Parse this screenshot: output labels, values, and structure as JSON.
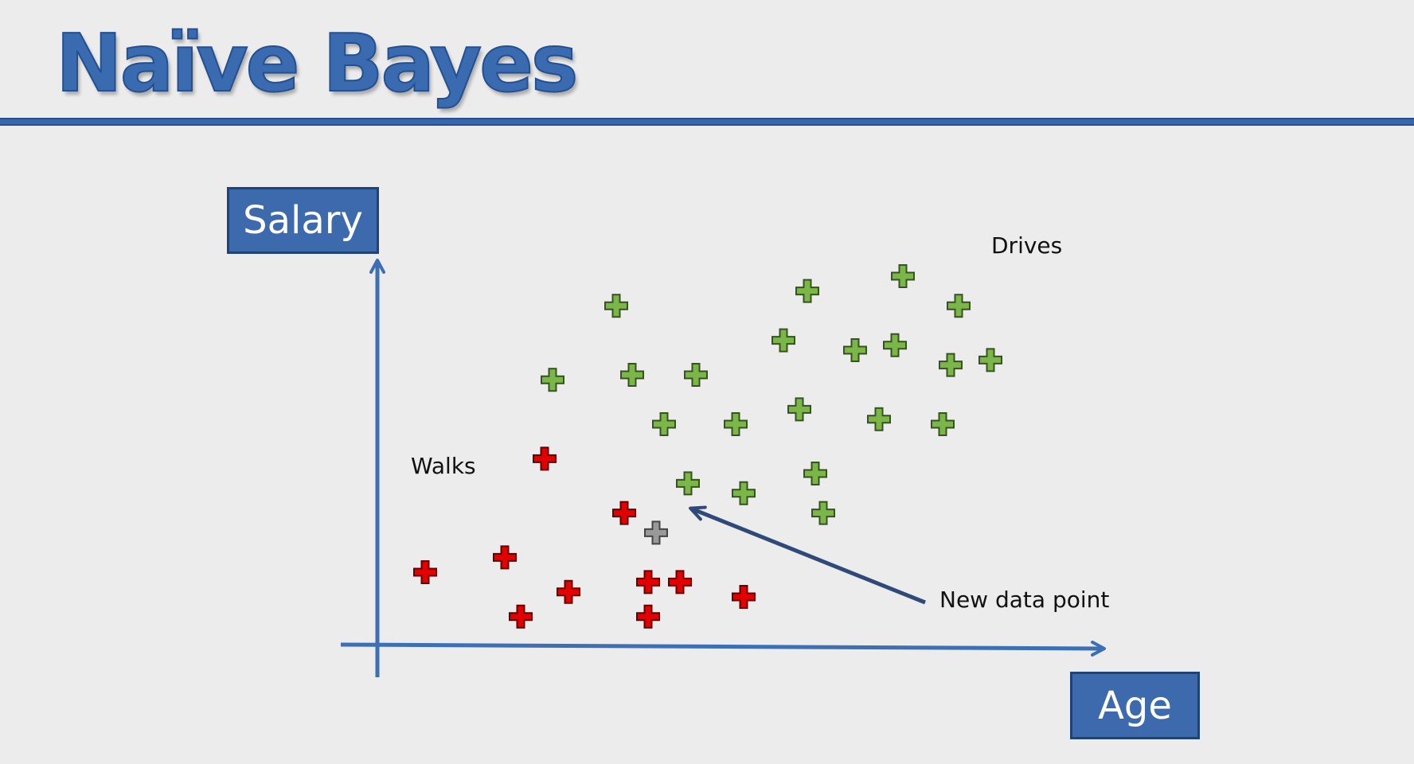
{
  "slide": {
    "title": "Naïve Bayes"
  },
  "chart_data": {
    "type": "scatter",
    "xlabel": "Age",
    "ylabel": "Salary",
    "grid": false,
    "series": [
      {
        "name": "Walks",
        "color": "#e30000",
        "points": [
          [
            0.6,
            1.5
          ],
          [
            1.6,
            1.8
          ],
          [
            1.8,
            0.6
          ],
          [
            2.1,
            3.8
          ],
          [
            2.4,
            1.1
          ],
          [
            3.1,
            2.7
          ],
          [
            3.4,
            1.3
          ],
          [
            3.4,
            0.6
          ],
          [
            3.8,
            1.3
          ],
          [
            4.6,
            1.0
          ]
        ]
      },
      {
        "name": "Drives",
        "color": "#7ab648",
        "points": [
          [
            2.2,
            5.4
          ],
          [
            3.0,
            6.9
          ],
          [
            3.2,
            5.5
          ],
          [
            4.0,
            5.5
          ],
          [
            3.6,
            4.5
          ],
          [
            3.9,
            3.3
          ],
          [
            4.5,
            4.5
          ],
          [
            4.6,
            3.1
          ],
          [
            5.1,
            6.2
          ],
          [
            5.3,
            4.8
          ],
          [
            5.5,
            3.5
          ],
          [
            5.6,
            2.7
          ],
          [
            5.4,
            7.2
          ],
          [
            6.0,
            6.0
          ],
          [
            6.6,
            7.5
          ],
          [
            6.5,
            6.1
          ],
          [
            6.3,
            4.6
          ],
          [
            7.1,
            4.5
          ],
          [
            7.3,
            6.9
          ],
          [
            7.2,
            5.7
          ],
          [
            7.7,
            5.8
          ]
        ]
      },
      {
        "color": "#999999",
        "points": [
          [
            3.5,
            2.3
          ]
        ]
      }
    ],
    "annotations": [
      {
        "text": "Walks"
      },
      {
        "text": "Drives"
      },
      {
        "text": "New data point"
      }
    ]
  },
  "colors": {
    "axis": "#3d6fb5",
    "title": "#3a6bb0",
    "arrow": "#2f4a78",
    "label_box": "#3d69ad"
  }
}
